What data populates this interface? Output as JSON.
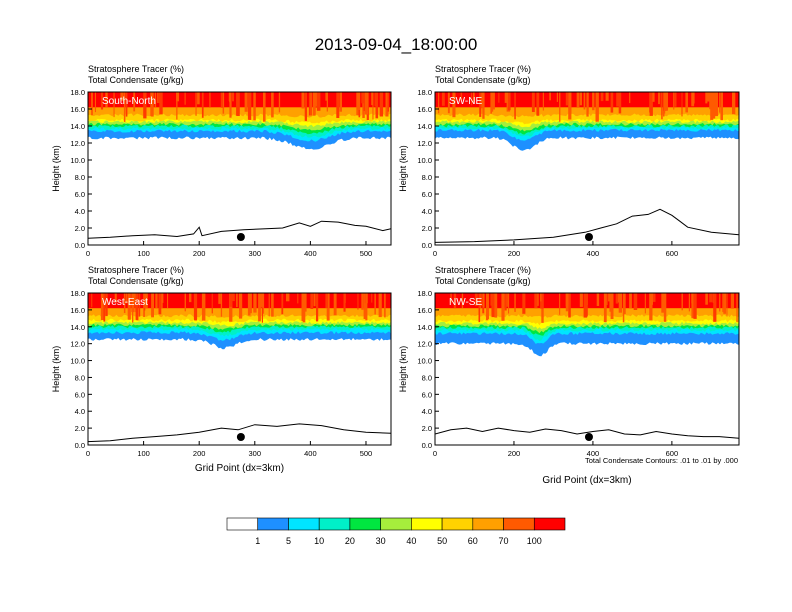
{
  "title": "2013-09-04_18:00:00",
  "colors": {
    "levels": [
      "#ffffff",
      "#1e90ff",
      "#00e5ff",
      "#00f0c8",
      "#00e640",
      "#a6ee3c",
      "#ffff00",
      "#ffd200",
      "#ffa000",
      "#ff5a00",
      "#ff0000"
    ],
    "terrain": "#000000",
    "frame": "#000000"
  },
  "colorbar": {
    "labels": [
      "1",
      "5",
      "10",
      "20",
      "30",
      "40",
      "50",
      "60",
      "70",
      "100"
    ]
  },
  "axis_common": {
    "y_label": "Height (km)",
    "y_ticks": [
      "0.0",
      "2.0",
      "4.0",
      "6.0",
      "8.0",
      "10.0",
      "12.0",
      "14.0",
      "16.0",
      "18.0"
    ],
    "ylim": [
      0,
      18
    ],
    "x_label": "Grid Point (dx=3km)",
    "header_line1": "Stratosphere Tracer   (%)",
    "header_line2": "Total Condensate   (g/kg)"
  },
  "contour_note": "Total Condensate Contours: .01 to .01 by .000",
  "chart_data": [
    {
      "type": "heatmap",
      "panel": "South-North",
      "xlim": [
        0,
        545
      ],
      "x_ticks": [
        0,
        100,
        200,
        300,
        400,
        500
      ],
      "marker_x": 275,
      "band_levels": [
        12.6,
        13.4,
        13.7,
        14.0,
        14.2,
        14.5,
        14.7,
        15.3
      ],
      "dip": {
        "center": 400,
        "width": 45,
        "depth": 1.3
      },
      "terrain": [
        [
          0,
          0.8
        ],
        [
          40,
          0.9
        ],
        [
          80,
          1.1
        ],
        [
          120,
          1.2
        ],
        [
          160,
          1.0
        ],
        [
          190,
          1.3
        ],
        [
          200,
          2.1
        ],
        [
          205,
          1.1
        ],
        [
          240,
          1.6
        ],
        [
          280,
          1.8
        ],
        [
          320,
          1.9
        ],
        [
          350,
          2.0
        ],
        [
          380,
          2.6
        ],
        [
          400,
          2.2
        ],
        [
          420,
          2.8
        ],
        [
          450,
          2.7
        ],
        [
          480,
          2.3
        ],
        [
          500,
          2.2
        ],
        [
          530,
          1.7
        ],
        [
          545,
          1.9
        ]
      ]
    },
    {
      "type": "heatmap",
      "panel": "SW-NE",
      "xlim": [
        0,
        770
      ],
      "x_ticks": [
        0,
        200,
        400,
        600
      ],
      "marker_x": 390,
      "band_levels": [
        12.6,
        13.5,
        13.8,
        14.0,
        14.2,
        14.5,
        14.7,
        15.3
      ],
      "dip": {
        "center": 225,
        "width": 40,
        "depth": 1.4
      },
      "terrain": [
        [
          0,
          0.3
        ],
        [
          100,
          0.4
        ],
        [
          200,
          0.6
        ],
        [
          300,
          0.9
        ],
        [
          380,
          1.5
        ],
        [
          420,
          2.0
        ],
        [
          460,
          2.5
        ],
        [
          500,
          3.4
        ],
        [
          540,
          3.6
        ],
        [
          570,
          4.2
        ],
        [
          600,
          3.5
        ],
        [
          620,
          2.8
        ],
        [
          640,
          2.1
        ],
        [
          700,
          1.5
        ],
        [
          770,
          1.2
        ]
      ]
    },
    {
      "type": "heatmap",
      "panel": "West-East",
      "xlim": [
        0,
        545
      ],
      "x_ticks": [
        0,
        100,
        200,
        300,
        400,
        500
      ],
      "marker_x": 275,
      "band_levels": [
        12.5,
        13.3,
        13.7,
        14.0,
        14.2,
        14.5,
        14.8,
        15.3
      ],
      "dip": {
        "center": 245,
        "width": 30,
        "depth": 1.0
      },
      "terrain": [
        [
          0,
          0.4
        ],
        [
          40,
          0.5
        ],
        [
          80,
          0.8
        ],
        [
          120,
          1.0
        ],
        [
          160,
          1.2
        ],
        [
          200,
          1.5
        ],
        [
          240,
          2.0
        ],
        [
          270,
          1.8
        ],
        [
          300,
          2.4
        ],
        [
          340,
          2.2
        ],
        [
          380,
          2.5
        ],
        [
          420,
          2.3
        ],
        [
          460,
          1.8
        ],
        [
          500,
          1.5
        ],
        [
          545,
          1.4
        ]
      ]
    },
    {
      "type": "heatmap",
      "panel": "NW-SE",
      "xlim": [
        0,
        770
      ],
      "x_ticks": [
        0,
        200,
        400,
        600
      ],
      "marker_x": 390,
      "band_levels": [
        12.0,
        13.2,
        13.6,
        13.9,
        14.1,
        14.4,
        14.7,
        15.3
      ],
      "dip": {
        "center": 265,
        "width": 25,
        "depth": 1.5
      },
      "terrain": [
        [
          0,
          1.3
        ],
        [
          40,
          1.8
        ],
        [
          80,
          2.0
        ],
        [
          120,
          1.6
        ],
        [
          160,
          2.0
        ],
        [
          200,
          1.7
        ],
        [
          240,
          1.5
        ],
        [
          280,
          1.9
        ],
        [
          320,
          1.7
        ],
        [
          360,
          1.3
        ],
        [
          400,
          1.6
        ],
        [
          440,
          1.8
        ],
        [
          480,
          1.3
        ],
        [
          520,
          1.2
        ],
        [
          560,
          1.6
        ],
        [
          600,
          1.3
        ],
        [
          640,
          1.1
        ],
        [
          680,
          1.0
        ],
        [
          720,
          1.0
        ],
        [
          770,
          0.8
        ]
      ]
    }
  ]
}
